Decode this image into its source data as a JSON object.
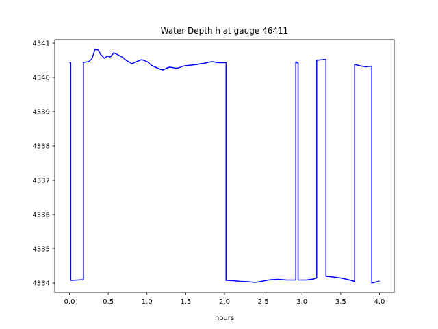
{
  "chart_data": {
    "type": "line",
    "title": "Water Depth h at gauge 46411",
    "xlabel": "hours",
    "ylabel": "",
    "xlim": [
      -0.19,
      4.19
    ],
    "ylim": [
      4333.72,
      4341.1
    ],
    "xticks": [
      0.0,
      0.5,
      1.0,
      1.5,
      2.0,
      2.5,
      3.0,
      3.5,
      4.0
    ],
    "xtick_labels": [
      "0.0",
      "0.5",
      "1.0",
      "1.5",
      "2.0",
      "2.5",
      "3.0",
      "3.5",
      "4.0"
    ],
    "yticks": [
      4334,
      4335,
      4336,
      4337,
      4338,
      4339,
      4340,
      4341
    ],
    "ytick_labels": [
      "4334",
      "4335",
      "4336",
      "4337",
      "4338",
      "4339",
      "4340",
      "4341"
    ],
    "grid": false,
    "series": [
      {
        "color": "#0000ff",
        "x": [
          0.0,
          0.017,
          0.017,
          0.18,
          0.18,
          0.25,
          0.29,
          0.33,
          0.37,
          0.4,
          0.45,
          0.49,
          0.53,
          0.57,
          0.61,
          0.65,
          0.69,
          0.73,
          0.77,
          0.81,
          0.85,
          0.89,
          0.93,
          0.97,
          1.01,
          1.05,
          1.09,
          1.13,
          1.17,
          1.21,
          1.25,
          1.29,
          1.33,
          1.37,
          1.41,
          1.45,
          1.49,
          1.53,
          1.57,
          1.61,
          1.65,
          1.69,
          1.73,
          1.77,
          1.81,
          1.85,
          1.89,
          1.93,
          1.97,
          2.02,
          2.02,
          2.12,
          2.2,
          2.3,
          2.4,
          2.5,
          2.6,
          2.7,
          2.8,
          2.92,
          2.92,
          2.93,
          2.93,
          2.95,
          2.95,
          3.05,
          3.15,
          3.19,
          3.19,
          3.31,
          3.31,
          3.4,
          3.5,
          3.6,
          3.68,
          3.68,
          3.75,
          3.82,
          3.9,
          3.9,
          4.0
        ],
        "y": [
          4340.43,
          4340.43,
          4334.08,
          4334.1,
          4340.44,
          4340.46,
          4340.55,
          4340.82,
          4340.8,
          4340.68,
          4340.56,
          4340.62,
          4340.6,
          4340.72,
          4340.68,
          4340.63,
          4340.58,
          4340.5,
          4340.45,
          4340.4,
          4340.45,
          4340.48,
          4340.52,
          4340.49,
          4340.45,
          4340.37,
          4340.32,
          4340.28,
          4340.24,
          4340.22,
          4340.27,
          4340.3,
          4340.29,
          4340.27,
          4340.28,
          4340.32,
          4340.34,
          4340.35,
          4340.36,
          4340.37,
          4340.38,
          4340.4,
          4340.41,
          4340.43,
          4340.45,
          4340.46,
          4340.44,
          4340.43,
          4340.43,
          4340.43,
          4334.08,
          4334.07,
          4334.05,
          4334.04,
          4334.02,
          4334.06,
          4334.1,
          4334.11,
          4334.09,
          4334.09,
          4340.45,
          4340.45,
          4340.43,
          4340.43,
          4334.09,
          4334.09,
          4334.12,
          4334.15,
          4340.5,
          4340.53,
          4334.2,
          4334.18,
          4334.15,
          4334.1,
          4334.05,
          4340.38,
          4340.34,
          4340.31,
          4340.33,
          4334.0,
          4334.06
        ]
      }
    ]
  }
}
